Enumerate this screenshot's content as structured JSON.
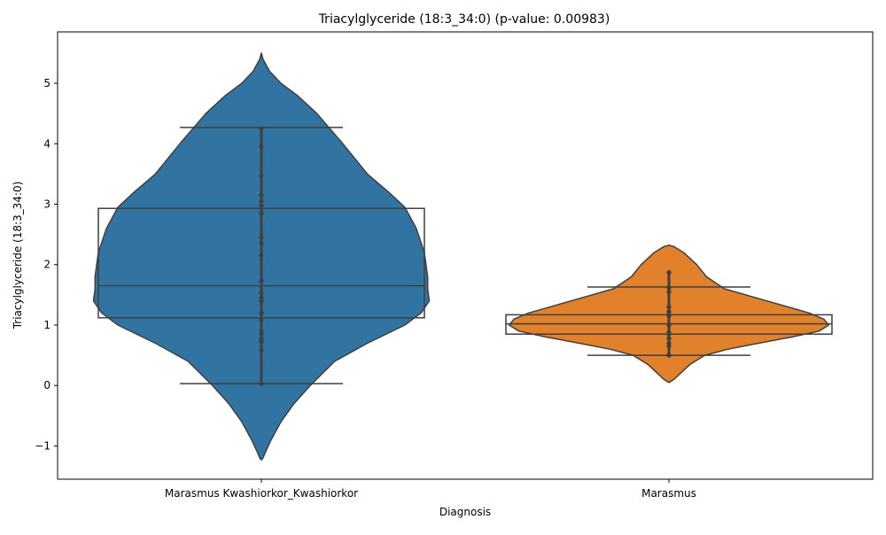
{
  "chart_data": {
    "type": "violin",
    "title": "Triacylglyceride (18:3_34:0) (p-value: 0.00983)",
    "xlabel": "Diagnosis",
    "ylabel": "Triacylglyceride (18:3_34:0)",
    "ylim": [
      -1.55,
      5.85
    ],
    "yticks": [
      -1,
      0,
      1,
      2,
      3,
      4,
      5
    ],
    "ytick_labels": [
      "−1",
      "0",
      "1",
      "2",
      "3",
      "4",
      "5"
    ],
    "categories": [
      "Marasmus Kwashiorkor_Kwashiorkor",
      "Marasmus"
    ],
    "colors": {
      "group0": "#3274a1",
      "group1": "#e1812c",
      "edge": "#3f3f3f"
    },
    "groups": [
      {
        "name": "Marasmus Kwashiorkor_Kwashiorkor",
        "color": "#3274a1",
        "box": {
          "q1": 1.12,
          "median": 1.65,
          "q3": 2.93,
          "whisker_low": 0.03,
          "whisker_high": 4.27
        },
        "points": [
          4.25,
          3.95,
          3.47,
          3.15,
          3.05,
          2.97,
          2.85,
          2.45,
          2.35,
          2.15,
          1.73,
          1.53,
          1.45,
          1.4,
          1.2,
          1.08,
          0.9,
          0.85,
          0.77,
          0.73,
          0.58,
          0.03
        ],
        "violin_profile": [
          [
            5.5,
            0.0
          ],
          [
            5.4,
            0.01
          ],
          [
            5.2,
            0.05
          ],
          [
            5.0,
            0.12
          ],
          [
            4.8,
            0.22
          ],
          [
            4.5,
            0.34
          ],
          [
            4.0,
            0.5
          ],
          [
            3.5,
            0.65
          ],
          [
            3.2,
            0.78
          ],
          [
            2.95,
            0.88
          ],
          [
            2.6,
            0.95
          ],
          [
            2.2,
            1.0
          ],
          [
            1.8,
            1.02
          ],
          [
            1.6,
            1.02
          ],
          [
            1.4,
            1.03
          ],
          [
            1.2,
            0.98
          ],
          [
            1.0,
            0.88
          ],
          [
            0.7,
            0.65
          ],
          [
            0.4,
            0.45
          ],
          [
            0.0,
            0.3
          ],
          [
            -0.3,
            0.2
          ],
          [
            -0.6,
            0.12
          ],
          [
            -0.9,
            0.06
          ],
          [
            -1.1,
            0.025
          ],
          [
            -1.2,
            0.01
          ],
          [
            -1.23,
            0.0
          ]
        ]
      },
      {
        "name": "Marasmus",
        "color": "#e1812c",
        "box": {
          "q1": 0.85,
          "median": 1.02,
          "q3": 1.17,
          "whisker_low": 0.5,
          "whisker_high": 1.63
        },
        "points": [
          1.87,
          1.62,
          1.55,
          1.3,
          1.22,
          1.17,
          1.15,
          1.0,
          0.88,
          0.85,
          0.78,
          0.7,
          0.65,
          0.5
        ],
        "violin_profile": [
          [
            2.32,
            0.0
          ],
          [
            2.3,
            0.03
          ],
          [
            2.2,
            0.09
          ],
          [
            2.0,
            0.17
          ],
          [
            1.8,
            0.23
          ],
          [
            1.6,
            0.34
          ],
          [
            1.4,
            0.6
          ],
          [
            1.2,
            0.86
          ],
          [
            1.1,
            0.95
          ],
          [
            1.0,
            0.98
          ],
          [
            0.9,
            0.92
          ],
          [
            0.8,
            0.75
          ],
          [
            0.7,
            0.55
          ],
          [
            0.6,
            0.36
          ],
          [
            0.5,
            0.22
          ],
          [
            0.35,
            0.13
          ],
          [
            0.2,
            0.07
          ],
          [
            0.1,
            0.03
          ],
          [
            0.05,
            0.0
          ]
        ]
      }
    ]
  }
}
